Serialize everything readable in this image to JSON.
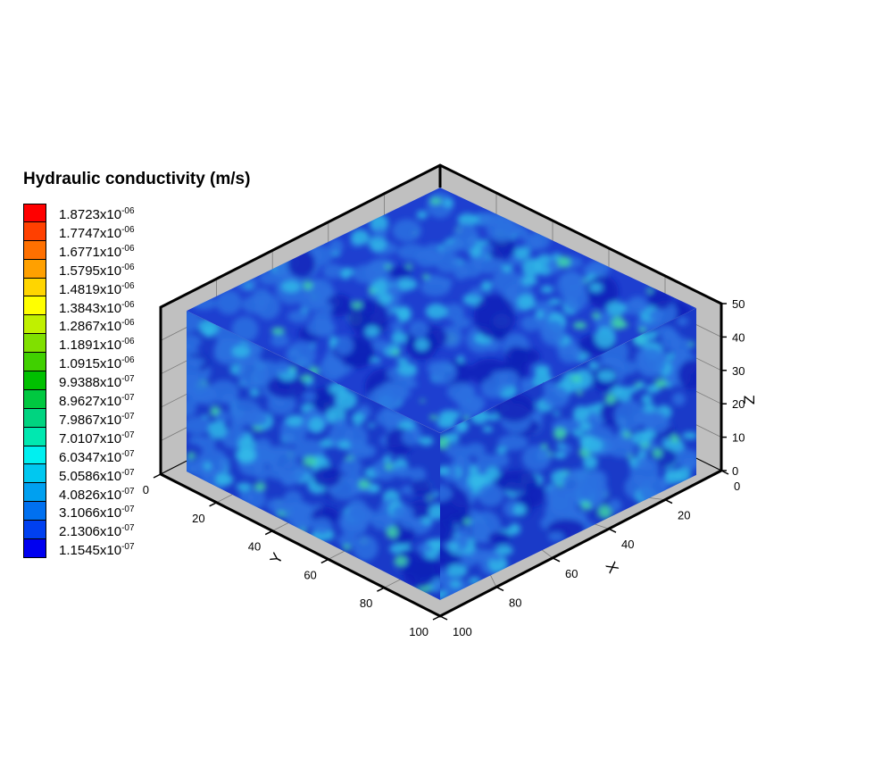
{
  "chart_data": {
    "type": "heatmap",
    "subtype": "3d-volume-contour",
    "legend": {
      "title": "Hydraulic conductivity (m/s)",
      "unit_exponent_marker": "x10",
      "levels": [
        {
          "mantissa": "1.8723",
          "exp": "-06",
          "color": "#ff0000"
        },
        {
          "mantissa": "1.7747",
          "exp": "-06",
          "color": "#ff4000"
        },
        {
          "mantissa": "1.6771",
          "exp": "-06",
          "color": "#ff7000"
        },
        {
          "mantissa": "1.5795",
          "exp": "-06",
          "color": "#ffa000"
        },
        {
          "mantissa": "1.4819",
          "exp": "-06",
          "color": "#ffd500"
        },
        {
          "mantissa": "1.3843",
          "exp": "-06",
          "color": "#ffff00"
        },
        {
          "mantissa": "1.2867",
          "exp": "-06",
          "color": "#c0f000"
        },
        {
          "mantissa": "1.1891",
          "exp": "-06",
          "color": "#80e000"
        },
        {
          "mantissa": "1.0915",
          "exp": "-06",
          "color": "#40d000"
        },
        {
          "mantissa": "9.9388",
          "exp": "-07",
          "color": "#00c000"
        },
        {
          "mantissa": "8.9627",
          "exp": "-07",
          "color": "#00c840"
        },
        {
          "mantissa": "7.9867",
          "exp": "-07",
          "color": "#00d480"
        },
        {
          "mantissa": "7.0107",
          "exp": "-07",
          "color": "#00e8b0"
        },
        {
          "mantissa": "6.0347",
          "exp": "-07",
          "color": "#00f0f0"
        },
        {
          "mantissa": "5.0586",
          "exp": "-07",
          "color": "#00c8f0"
        },
        {
          "mantissa": "4.0826",
          "exp": "-07",
          "color": "#00a0f0"
        },
        {
          "mantissa": "3.1066",
          "exp": "-07",
          "color": "#0070f0"
        },
        {
          "mantissa": "2.1306",
          "exp": "-07",
          "color": "#0040f0"
        },
        {
          "mantissa": "1.1545",
          "exp": "-07",
          "color": "#0000f0"
        }
      ]
    },
    "axes": {
      "x": {
        "label": "X",
        "range": [
          0,
          100
        ],
        "ticks": [
          "0",
          "20",
          "40",
          "60",
          "80",
          "100"
        ]
      },
      "y": {
        "label": "Y",
        "range": [
          0,
          100
        ],
        "ticks": [
          "0",
          "20",
          "40",
          "60",
          "80",
          "100"
        ]
      },
      "z": {
        "label": "Z",
        "range": [
          0,
          50
        ],
        "ticks": [
          "0",
          "10",
          "20",
          "30",
          "40",
          "50"
        ]
      }
    },
    "colors": {
      "background_field": "#1537c8",
      "dominant_low": "#1a30c8",
      "mid": "#2aa8e8",
      "high_spots": "#40d8a0",
      "box_fill": "#c0c0c0",
      "box_edge": "#000000"
    },
    "grid": "on",
    "legend_placement": "left"
  }
}
